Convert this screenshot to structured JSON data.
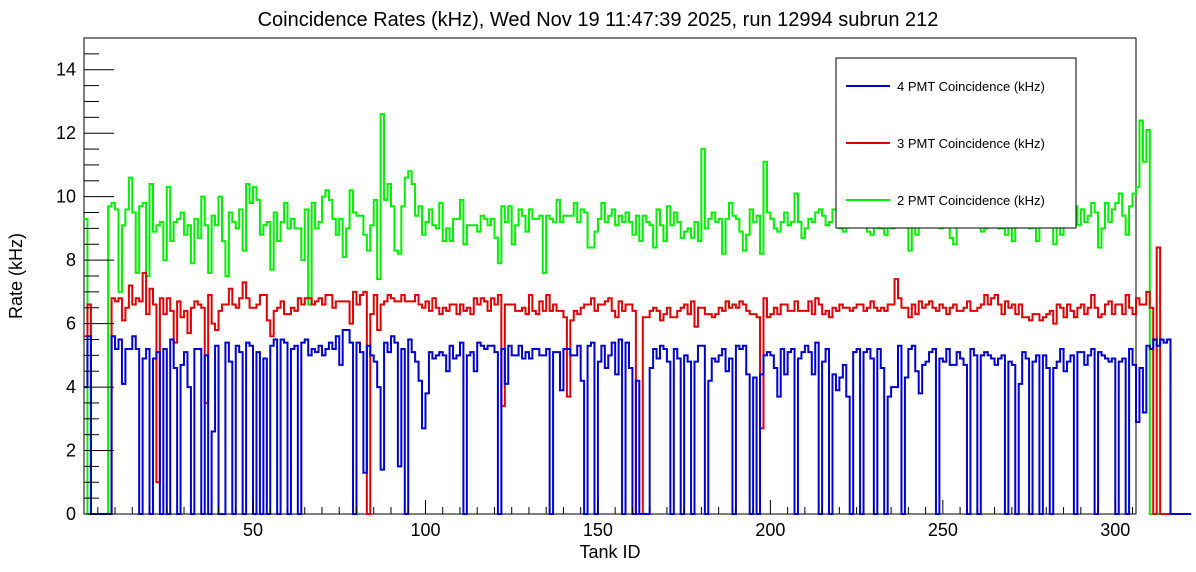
{
  "chart_data": {
    "type": "line",
    "title": "Coincidence Rates (kHz), Wed Nov 19 11:47:39 2025, run 12994 subrun 212",
    "xlabel": "Tank ID",
    "ylabel": "Rate (kHz)",
    "xlim": [
      1,
      306
    ],
    "ylim": [
      0,
      15
    ],
    "x_ticks": [
      50,
      100,
      150,
      200,
      250,
      300
    ],
    "y_ticks": [
      0,
      2,
      4,
      6,
      8,
      10,
      12,
      14
    ],
    "step": true,
    "grid": false,
    "legend_position": "top-right",
    "series": [
      {
        "name": "4 PMT Coincidence (kHz)",
        "color": "#0000cc",
        "values": [
          4.0,
          5.6,
          0.0,
          0.0,
          0.0,
          0.0,
          0.0,
          0.0,
          5.6,
          5.2,
          5.5,
          4.1,
          5.2,
          5.2,
          5.6,
          5.2,
          0.0,
          4.9,
          5.2,
          0.0,
          4.9,
          5.1,
          0.0,
          5.2,
          0.0,
          5.5,
          4.6,
          0.0,
          4.7,
          5.1,
          4.0,
          0.0,
          5.2,
          5.2,
          0.0,
          5.0,
          0.0,
          2.6,
          5.3,
          0.0,
          0.0,
          5.4,
          4.8,
          0.0,
          5.3,
          5.1,
          0.0,
          5.4,
          5.3,
          0.0,
          5.1,
          0.0,
          4.9,
          0.0,
          5.3,
          5.5,
          0.0,
          5.5,
          5.4,
          0.0,
          5.2,
          5.3,
          0.0,
          5.4,
          5.5,
          5.0,
          5.2,
          5.1,
          5.3,
          5.0,
          5.2,
          5.4,
          5.2,
          5.6,
          4.7,
          5.8,
          5.8,
          5.4,
          0.0,
          5.4,
          5.1,
          1.3,
          5.3,
          5.0,
          4.8,
          4.0,
          1.4,
          5.4,
          5.1,
          5.6,
          5.4,
          1.5,
          5.2,
          0.0,
          5.5,
          5.1,
          4.8,
          4.2,
          2.7,
          3.8,
          5.1,
          4.9,
          5.0,
          5.1,
          5.0,
          4.5,
          5.3,
          4.9,
          5.0,
          5.4,
          0.0,
          5.0,
          5.1,
          4.5,
          5.4,
          5.3,
          5.2,
          5.3,
          5.3,
          5.1,
          0.0,
          5.2,
          4.1,
          5.3,
          5.0,
          5.0,
          5.3,
          4.9,
          5.1,
          4.9,
          5.2,
          5.2,
          5.0,
          5.0,
          5.2,
          0.0,
          5.1,
          5.1,
          3.9,
          5.2,
          5.2,
          5.0,
          5.0,
          5.3,
          4.2,
          0.0,
          5.3,
          5.4,
          0.0,
          4.8,
          5.3,
          4.6,
          5.0,
          5.4,
          4.4,
          5.5,
          0.0,
          5.4,
          4.6,
          0.0,
          4.2,
          0.0,
          0.0,
          0.0,
          4.6,
          5.2,
          4.9,
          5.3,
          5.2,
          4.8,
          0.0,
          5.2,
          4.9,
          0.0,
          5.0,
          4.8,
          0.0,
          4.8,
          5.3,
          5.3,
          0.0,
          4.2,
          4.9,
          4.8,
          5.0,
          5.2,
          4.5,
          4.9,
          0.0,
          5.3,
          5.2,
          5.3,
          4.4,
          0.0,
          4.3,
          0.0,
          4.4,
          5.0,
          5.1,
          5.0,
          4.6,
          3.7,
          5.2,
          4.4,
          5.1,
          5.2,
          0.0,
          4.9,
          5.1,
          5.3,
          5.1,
          4.4,
          5.4,
          0.0,
          4.8,
          5.2,
          0.0,
          4.4,
          3.9,
          4.3,
          4.7,
          3.7,
          0.0,
          5.1,
          5.2,
          0.0,
          5.1,
          5.2,
          4.9,
          0.0,
          5.2,
          4.6,
          0.0,
          3.7,
          4.0,
          4.0,
          5.3,
          0.0,
          4.3,
          5.2,
          5.3,
          4.5,
          3.8,
          4.7,
          4.8,
          5.1,
          5.2,
          0.0,
          4.9,
          4.8,
          5.2,
          4.7,
          4.7,
          5.1,
          4.9,
          4.7,
          0.0,
          5.2,
          5.0,
          0.0,
          5.0,
          5.1,
          5.0,
          4.9,
          4.7,
          4.9,
          5.0,
          0.0,
          4.8,
          4.7,
          0.0,
          4.1,
          5.1,
          4.9,
          0.0,
          4.8,
          5.0,
          0.0,
          5.0,
          4.6,
          0.0,
          4.6,
          4.8,
          5.2,
          4.5,
          4.8,
          5.0,
          0.0,
          5.1,
          5.1,
          4.7,
          5.0,
          5.2,
          0.0,
          5.1,
          5.0,
          4.9,
          4.8,
          4.9,
          0.0,
          4.8,
          4.9,
          0.0,
          5.2,
          4.7,
          2.9,
          4.6,
          3.2,
          5.3,
          5.2,
          5.5,
          5.3,
          5.5,
          5.4,
          5.5,
          0.0,
          0.0,
          0.0,
          0.0,
          0.0,
          0.0
        ]
      },
      {
        "name": "3 PMT Coincidence (kHz)",
        "color": "#dd0000",
        "values": [
          5.6,
          6.6,
          0.0,
          0.0,
          0.0,
          0.0,
          0.0,
          0.0,
          6.8,
          6.7,
          6.8,
          6.1,
          6.5,
          7.2,
          6.6,
          6.8,
          6.7,
          7.6,
          6.3,
          7.1,
          6.6,
          1.0,
          6.8,
          6.3,
          6.8,
          6.4,
          5.4,
          6.7,
          6.2,
          6.4,
          5.7,
          6.5,
          6.7,
          6.6,
          6.5,
          3.5,
          6.9,
          6.0,
          5.8,
          6.4,
          6.6,
          6.6,
          7.1,
          6.6,
          6.5,
          6.8,
          7.3,
          6.8,
          6.5,
          6.5,
          6.6,
          6.9,
          6.9,
          6.1,
          5.6,
          6.4,
          6.5,
          6.7,
          6.3,
          6.3,
          6.5,
          6.4,
          6.8,
          6.6,
          6.8,
          6.8,
          6.6,
          6.7,
          6.8,
          6.6,
          6.9,
          6.9,
          6.5,
          6.7,
          6.7,
          6.7,
          6.7,
          6.0,
          7.0,
          6.6,
          6.9,
          7.0,
          0.0,
          6.3,
          6.9,
          5.8,
          6.6,
          6.7,
          6.9,
          6.8,
          6.7,
          6.7,
          6.9,
          6.7,
          6.7,
          6.7,
          6.9,
          6.6,
          6.5,
          6.7,
          6.4,
          6.8,
          6.5,
          6.3,
          6.5,
          6.4,
          6.6,
          6.6,
          6.3,
          6.6,
          6.4,
          6.5,
          6.3,
          6.8,
          6.6,
          6.8,
          6.7,
          6.4,
          6.8,
          6.6,
          6.9,
          3.4,
          6.6,
          6.6,
          6.6,
          6.4,
          6.4,
          6.5,
          6.3,
          6.9,
          6.4,
          6.3,
          6.7,
          6.4,
          6.9,
          6.4,
          6.6,
          6.4,
          6.4,
          6.2,
          3.7,
          6.1,
          6.4,
          6.3,
          6.5,
          6.6,
          6.6,
          6.8,
          6.4,
          6.6,
          6.6,
          6.7,
          6.8,
          6.4,
          6.2,
          6.7,
          6.4,
          6.6,
          6.6,
          6.4,
          0.0,
          0.0,
          6.2,
          6.2,
          6.4,
          6.5,
          6.4,
          6.1,
          6.3,
          6.5,
          6.2,
          6.2,
          6.4,
          6.5,
          6.6,
          6.3,
          6.7,
          5.9,
          6.5,
          6.5,
          6.3,
          6.3,
          6.2,
          6.3,
          6.5,
          6.4,
          6.7,
          6.5,
          6.6,
          6.5,
          6.7,
          6.6,
          6.4,
          6.3,
          6.3,
          6.2,
          2.7,
          6.8,
          6.2,
          6.3,
          6.5,
          6.3,
          6.6,
          6.6,
          6.4,
          6.4,
          6.7,
          6.4,
          6.4,
          6.4,
          6.7,
          6.3,
          6.8,
          6.6,
          6.3,
          6.4,
          6.2,
          6.5,
          6.4,
          6.6,
          6.5,
          6.5,
          6.4,
          6.5,
          6.6,
          6.6,
          6.4,
          6.5,
          6.7,
          6.5,
          6.4,
          6.5,
          6.4,
          6.6,
          6.6,
          7.4,
          6.8,
          6.5,
          6.5,
          6.2,
          6.6,
          6.3,
          6.7,
          6.5,
          6.6,
          6.7,
          6.5,
          6.4,
          6.6,
          6.5,
          6.3,
          6.5,
          6.6,
          6.4,
          6.4,
          6.5,
          6.7,
          6.4,
          6.4,
          6.5,
          6.6,
          6.9,
          6.6,
          6.8,
          6.9,
          6.6,
          6.3,
          6.7,
          6.5,
          6.6,
          6.3,
          6.6,
          6.2,
          6.2,
          6.1,
          6.3,
          6.3,
          6.1,
          6.2,
          6.3,
          6.4,
          6.0,
          6.6,
          6.5,
          6.2,
          6.6,
          6.4,
          6.2,
          6.5,
          6.6,
          6.3,
          6.5,
          6.9,
          6.5,
          6.2,
          6.3,
          6.6,
          6.7,
          6.3,
          6.6,
          6.6,
          6.3,
          6.9,
          6.5,
          6.3,
          6.8,
          6.6,
          6.6,
          7.0,
          6.5,
          0.0,
          8.4,
          0.0,
          0.0,
          0.0,
          0.0,
          0.0,
          0.0
        ]
      },
      {
        "name": "2 PMT Coincidence (kHz)",
        "color": "#00ee00",
        "values": [
          9.3,
          0.0,
          0.0,
          0.0,
          0.0,
          0.0,
          0.0,
          9.7,
          9.8,
          9.6,
          7.0,
          9.1,
          9.6,
          10.6,
          9.5,
          7.6,
          9.7,
          9.8,
          7.5,
          10.4,
          8.9,
          9.1,
          9.2,
          8.0,
          10.3,
          8.6,
          9.2,
          9.3,
          9.5,
          8.8,
          9.1,
          7.9,
          9.3,
          8.7,
          10.0,
          9.1,
          7.6,
          9.4,
          9.1,
          10.0,
          8.6,
          7.5,
          9.5,
          9.2,
          9.0,
          9.6,
          8.3,
          10.4,
          9.8,
          10.3,
          9.9,
          8.8,
          9.1,
          9.2,
          7.7,
          9.5,
          8.6,
          9.2,
          9.8,
          9.0,
          9.3,
          9.0,
          9.0,
          8.0,
          9.6,
          6.6,
          9.8,
          9.0,
          9.2,
          10.0,
          10.2,
          9.9,
          9.3,
          8.8,
          9.3,
          8.1,
          9.0,
          10.2,
          9.5,
          9.4,
          9.4,
          8.8,
          8.3,
          9.1,
          9.9,
          7.4,
          12.6,
          9.9,
          10.4,
          9.7,
          8.3,
          8.2,
          9.7,
          10.6,
          10.8,
          10.4,
          9.4,
          9.7,
          8.8,
          9.2,
          9.6,
          9.1,
          9.0,
          9.8,
          8.6,
          9.0,
          8.6,
          9.3,
          9.3,
          9.9,
          8.5,
          9.1,
          9.1,
          9.1,
          8.9,
          9.4,
          9.3,
          9.1,
          9.3,
          8.7,
          7.9,
          9.7,
          9.2,
          9.7,
          8.5,
          9.1,
          9.6,
          9.4,
          8.9,
          9.6,
          9.3,
          9.3,
          9.4,
          7.6,
          9.4,
          9.3,
          9.2,
          9.9,
          9.2,
          9.4,
          9.4,
          9.4,
          9.8,
          9.2,
          9.6,
          9.5,
          8.4,
          8.4,
          8.9,
          9.3,
          9.8,
          9.2,
          9.4,
          9.6,
          9.1,
          9.4,
          9.2,
          9.5,
          9.2,
          8.8,
          9.4,
          8.6,
          9.4,
          9.2,
          9.1,
          8.4,
          9.6,
          9.1,
          8.6,
          9.7,
          9.1,
          9.5,
          9.2,
          8.7,
          8.9,
          9.0,
          8.7,
          9.2,
          8.6,
          11.5,
          9.0,
          9.3,
          9.5,
          9.2,
          9.3,
          8.2,
          9.3,
          9.8,
          9.4,
          9.3,
          8.9,
          8.3,
          8.8,
          9.6,
          9.2,
          9.4,
          8.2,
          11.1,
          9.5,
          9.3,
          9.0,
          8.9,
          9.2,
          9.5,
          9.1,
          9.2,
          10.1,
          9.2,
          8.7,
          9.0,
          9.3,
          9.2,
          9.5,
          9.6,
          9.4,
          9.1,
          9.2,
          9.6,
          9.6,
          9.0,
          8.9,
          9.4,
          9.9,
          9.1,
          9.5,
          9.1,
          9.2,
          8.9,
          8.8,
          9.4,
          9.0,
          9.0,
          8.8,
          9.2,
          9.0,
          9.6,
          9.4,
          9.8,
          9.3,
          8.3,
          9.7,
          8.8,
          9.2,
          9.1,
          9.4,
          9.1,
          9.5,
          9.9,
          9.0,
          9.4,
          9.1,
          8.7,
          8.5,
          9.4,
          9.2,
          9.1,
          9.1,
          9.2,
          9.5,
          9.1,
          8.9,
          9.0,
          9.2,
          9.4,
          9.5,
          9.0,
          9.0,
          8.8,
          9.3,
          8.6,
          9.2,
          9.4,
          9.3,
          9.6,
          9.0,
          9.1,
          8.6,
          9.4,
          9.2,
          9.3,
          9.1,
          8.5,
          9.4,
          8.8,
          9.4,
          9.2,
          9.3,
          9.7,
          9.1,
          9.6,
          9.2,
          9.4,
          9.8,
          9.5,
          8.4,
          9.0,
          9.8,
          9.2,
          9.6,
          9.8,
          10.1,
          9.4,
          8.8,
          9.7,
          10.1,
          10.3,
          12.4,
          11.1,
          12.1,
          0.0,
          0.0,
          0.0,
          0.0,
          0.0,
          0.0
        ]
      }
    ]
  }
}
